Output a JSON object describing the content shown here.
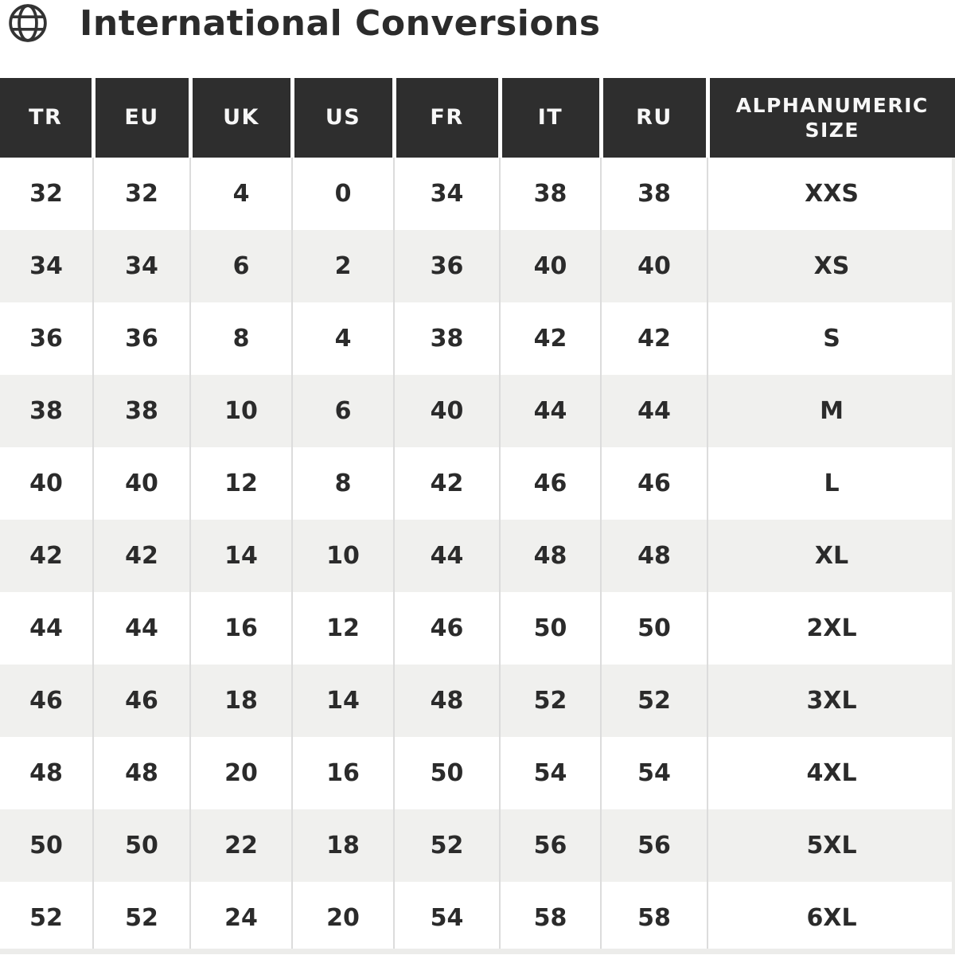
{
  "header": {
    "title": "International Conversions",
    "icon": "globe-icon"
  },
  "colors": {
    "header_bg": "#2e2e2e",
    "header_text": "#f7f7f7",
    "row_alt_bg": "#f0f0ee",
    "body_text": "#2b2b2b",
    "column_divider": "#dcdcdc",
    "header_divider": "#ffffff"
  },
  "chart_data": {
    "type": "table",
    "title": "International Conversions",
    "columns": [
      "TR",
      "EU",
      "UK",
      "US",
      "FR",
      "IT",
      "RU",
      "ALPHANUMERIC SIZE"
    ],
    "rows": [
      [
        "32",
        "32",
        "4",
        "0",
        "34",
        "38",
        "38",
        "XXS"
      ],
      [
        "34",
        "34",
        "6",
        "2",
        "36",
        "40",
        "40",
        "XS"
      ],
      [
        "36",
        "36",
        "8",
        "4",
        "38",
        "42",
        "42",
        "S"
      ],
      [
        "38",
        "38",
        "10",
        "6",
        "40",
        "44",
        "44",
        "M"
      ],
      [
        "40",
        "40",
        "12",
        "8",
        "42",
        "46",
        "46",
        "L"
      ],
      [
        "42",
        "42",
        "14",
        "10",
        "44",
        "48",
        "48",
        "XL"
      ],
      [
        "44",
        "44",
        "16",
        "12",
        "46",
        "50",
        "50",
        "2XL"
      ],
      [
        "46",
        "46",
        "18",
        "14",
        "48",
        "52",
        "52",
        "3XL"
      ],
      [
        "48",
        "48",
        "20",
        "16",
        "50",
        "54",
        "54",
        "4XL"
      ],
      [
        "50",
        "50",
        "22",
        "18",
        "52",
        "56",
        "56",
        "5XL"
      ],
      [
        "52",
        "52",
        "24",
        "20",
        "54",
        "58",
        "58",
        "6XL"
      ]
    ],
    "layout": {
      "striped_rows": true,
      "first_row_background": "white",
      "header_position": "top"
    }
  }
}
